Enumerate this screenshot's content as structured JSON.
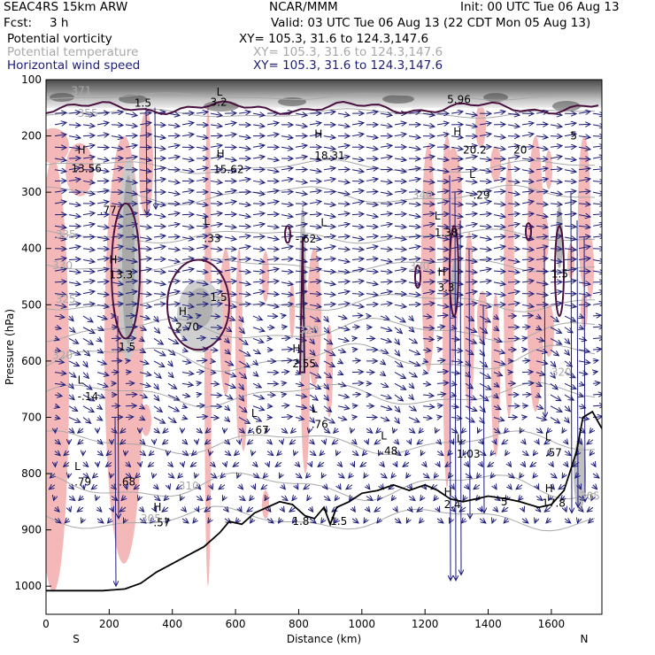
{
  "header": {
    "model": "SEAC4RS 15km ARW",
    "org": "NCAR/MMM",
    "init": "Init: 00 UTC Tue 06 Aug 13",
    "fcst_label": "Fcst:",
    "fcst_value": "3 h",
    "valid": "Valid: 03 UTC Tue 06 Aug 13 (22 CDT Mon 05 Aug 13)",
    "fields": [
      {
        "name": "Potential vorticity",
        "xy": "XY= 105.3, 31.6 to 124.3,147.6",
        "color": "#000000"
      },
      {
        "name": "Potential temperature",
        "xy": "XY= 105.3, 31.6 to 124.3,147.6",
        "color": "#a8a8a8"
      },
      {
        "name": "Horizontal wind speed",
        "xy": "XY= 105.3, 31.6 to 124.3,147.6",
        "color": "#1c1c7a"
      }
    ]
  },
  "chart_data": {
    "type": "cross-section",
    "xlabel": "Distance (km)",
    "ylabel": "Pressure (hPa)",
    "xlim": [
      0,
      1760
    ],
    "ylim": [
      1050,
      100
    ],
    "x_ticks": [
      0,
      200,
      400,
      600,
      800,
      1000,
      1200,
      1400,
      1600
    ],
    "y_ticks": [
      100,
      200,
      300,
      400,
      500,
      600,
      700,
      800,
      900,
      1000
    ],
    "x_end_labels": {
      "left": "S",
      "right": "N"
    },
    "terrain_pressure": [
      [
        0,
        1008
      ],
      [
        100,
        1008
      ],
      [
        180,
        1008
      ],
      [
        250,
        1005
      ],
      [
        300,
        995
      ],
      [
        350,
        975
      ],
      [
        400,
        960
      ],
      [
        450,
        945
      ],
      [
        500,
        930
      ],
      [
        550,
        905
      ],
      [
        580,
        885
      ],
      [
        620,
        890
      ],
      [
        660,
        870
      ],
      [
        700,
        860
      ],
      [
        740,
        850
      ],
      [
        780,
        855
      ],
      [
        820,
        875
      ],
      [
        850,
        880
      ],
      [
        880,
        860
      ],
      [
        900,
        890
      ],
      [
        920,
        860
      ],
      [
        960,
        850
      ],
      [
        1000,
        835
      ],
      [
        1050,
        830
      ],
      [
        1100,
        820
      ],
      [
        1150,
        830
      ],
      [
        1200,
        820
      ],
      [
        1240,
        830
      ],
      [
        1280,
        845
      ],
      [
        1320,
        850
      ],
      [
        1360,
        845
      ],
      [
        1400,
        840
      ],
      [
        1460,
        845
      ],
      [
        1500,
        850
      ],
      [
        1560,
        860
      ],
      [
        1600,
        855
      ],
      [
        1640,
        830
      ],
      [
        1680,
        760
      ],
      [
        1700,
        700
      ],
      [
        1730,
        690
      ],
      [
        1760,
        720
      ]
    ],
    "theta_labels": [
      {
        "x": 80,
        "p": 120,
        "v": "371"
      },
      {
        "x": 100,
        "p": 160,
        "v": "355"
      },
      {
        "x": 1160,
        "p": 305,
        "v": "340"
      },
      {
        "x": 30,
        "p": 375,
        "v": "335"
      },
      {
        "x": 20,
        "p": 430,
        "v": "330"
      },
      {
        "x": 1150,
        "p": 432,
        "v": "330"
      },
      {
        "x": 30,
        "p": 490,
        "v": "325"
      },
      {
        "x": 20,
        "p": 590,
        "v": "320"
      },
      {
        "x": 800,
        "p": 545,
        "v": "320"
      },
      {
        "x": 1600,
        "p": 620,
        "v": "320"
      },
      {
        "x": 420,
        "p": 822,
        "v": "310"
      },
      {
        "x": 300,
        "p": 880,
        "v": "305"
      },
      {
        "x": 1690,
        "p": 840,
        "v": "305"
      }
    ],
    "pv_labels": [
      {
        "x": 280,
        "p": 142,
        "v": "1.5"
      },
      {
        "x": 520,
        "p": 140,
        "v": "3.2"
      },
      {
        "x": 1270,
        "p": 135,
        "v": "5.96"
      },
      {
        "x": 1660,
        "p": 200,
        "v": "5"
      },
      {
        "x": 1320,
        "p": 225,
        "v": "20.2"
      },
      {
        "x": 1480,
        "p": 225,
        "v": "20"
      },
      {
        "x": 80,
        "p": 258,
        "v": "13.56"
      },
      {
        "x": 530,
        "p": 260,
        "v": "15.62"
      },
      {
        "x": 850,
        "p": 235,
        "v": "18.31"
      },
      {
        "x": 1340,
        "p": 305,
        "v": "-.29"
      },
      {
        "x": 170,
        "p": 332,
        "v": ".77"
      },
      {
        "x": 500,
        "p": 382,
        "v": ".33"
      },
      {
        "x": 790,
        "p": 383,
        "v": "-.62"
      },
      {
        "x": 1230,
        "p": 372,
        "v": "1.38"
      },
      {
        "x": 200,
        "p": 447,
        "v": "13.3"
      },
      {
        "x": 1600,
        "p": 445,
        "v": "1.5"
      },
      {
        "x": 1240,
        "p": 470,
        "v": "3.3"
      },
      {
        "x": 520,
        "p": 487,
        "v": "1.5"
      },
      {
        "x": 410,
        "p": 540,
        "v": "2.70"
      },
      {
        "x": 230,
        "p": 575,
        "v": "1.5"
      },
      {
        "x": 780,
        "p": 605,
        "v": "2.55"
      },
      {
        "x": 100,
        "p": 663,
        "v": "-.14"
      },
      {
        "x": 840,
        "p": 713,
        "v": ".76"
      },
      {
        "x": 640,
        "p": 723,
        "v": "-.67"
      },
      {
        "x": 1060,
        "p": 760,
        "v": ".48"
      },
      {
        "x": 1300,
        "p": 765,
        "v": "1.03"
      },
      {
        "x": 1580,
        "p": 763,
        "v": ".57"
      },
      {
        "x": 90,
        "p": 815,
        "v": ".79"
      },
      {
        "x": 230,
        "p": 815,
        "v": ".68"
      },
      {
        "x": 1570,
        "p": 853,
        "v": "17.8"
      },
      {
        "x": 1260,
        "p": 855,
        "v": "2.4"
      },
      {
        "x": 1440,
        "p": 850,
        "v": "5"
      },
      {
        "x": 340,
        "p": 887,
        "v": ".57"
      },
      {
        "x": 780,
        "p": 885,
        "v": "1.8"
      },
      {
        "x": 900,
        "p": 885,
        "v": "1.5"
      }
    ],
    "pv_extrema_letters": [
      {
        "x": 540,
        "p": 122,
        "v": "L"
      },
      {
        "x": 1290,
        "p": 193,
        "v": "H"
      },
      {
        "x": 850,
        "p": 197,
        "v": "H"
      },
      {
        "x": 100,
        "p": 225,
        "v": "H"
      },
      {
        "x": 540,
        "p": 232,
        "v": "H"
      },
      {
        "x": 1340,
        "p": 268,
        "v": "L"
      },
      {
        "x": 500,
        "p": 352,
        "v": "L"
      },
      {
        "x": 870,
        "p": 354,
        "v": "L"
      },
      {
        "x": 1230,
        "p": 342,
        "v": "L"
      },
      {
        "x": 200,
        "p": 420,
        "v": "H"
      },
      {
        "x": 1240,
        "p": 442,
        "v": "H"
      },
      {
        "x": 420,
        "p": 512,
        "v": "H"
      },
      {
        "x": 780,
        "p": 578,
        "v": "H"
      },
      {
        "x": 100,
        "p": 634,
        "v": "L"
      },
      {
        "x": 650,
        "p": 693,
        "v": "L"
      },
      {
        "x": 840,
        "p": 685,
        "v": "L"
      },
      {
        "x": 1060,
        "p": 733,
        "v": "L"
      },
      {
        "x": 1300,
        "p": 738,
        "v": "L"
      },
      {
        "x": 1580,
        "p": 735,
        "v": "L"
      },
      {
        "x": 90,
        "p": 787,
        "v": "L"
      },
      {
        "x": 1580,
        "p": 827,
        "v": "H"
      },
      {
        "x": 1260,
        "p": 833,
        "v": "H"
      },
      {
        "x": 340,
        "p": 860,
        "v": "H"
      }
    ]
  }
}
